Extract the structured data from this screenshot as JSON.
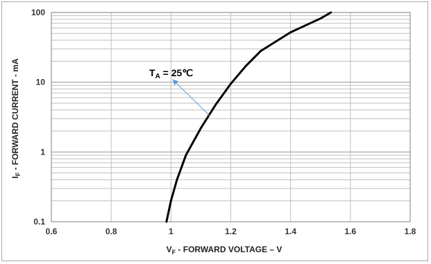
{
  "chart_data": {
    "type": "line",
    "xscale": "linear",
    "yscale": "log",
    "xlim": [
      0.6,
      1.8
    ],
    "ylim": [
      0.1,
      100
    ],
    "x_ticks": [
      "0.6",
      "0.8",
      "1",
      "1.2",
      "1.4",
      "1.6",
      "1.8"
    ],
    "y_ticks": [
      "0.1",
      "1",
      "10",
      "100"
    ],
    "grid": true,
    "xlabel": {
      "main": "V",
      "sub": "F",
      "rest": " - FORWARD VOLTAGE – V"
    },
    "ylabel": {
      "main": "I",
      "sub": "F",
      "rest": " - FORWARD CURRENT - mA"
    },
    "series": [
      {
        "color": "#000000",
        "points": [
          [
            0.985,
            0.1
          ],
          [
            1.0,
            0.2
          ],
          [
            1.02,
            0.4
          ],
          [
            1.05,
            0.9
          ],
          [
            1.1,
            2.2
          ],
          [
            1.15,
            4.8
          ],
          [
            1.2,
            9.5
          ],
          [
            1.25,
            17
          ],
          [
            1.3,
            28
          ],
          [
            1.4,
            52
          ],
          [
            1.5,
            82
          ],
          [
            1.535,
            100
          ]
        ]
      }
    ],
    "annotation": {
      "main": "T",
      "sub": "A",
      "rest": " = 25℃",
      "arrow_color": "#5b9bd5",
      "arrow_from": [
        1.13,
        3.3
      ],
      "arrow_to": [
        1.005,
        11
      ]
    }
  }
}
